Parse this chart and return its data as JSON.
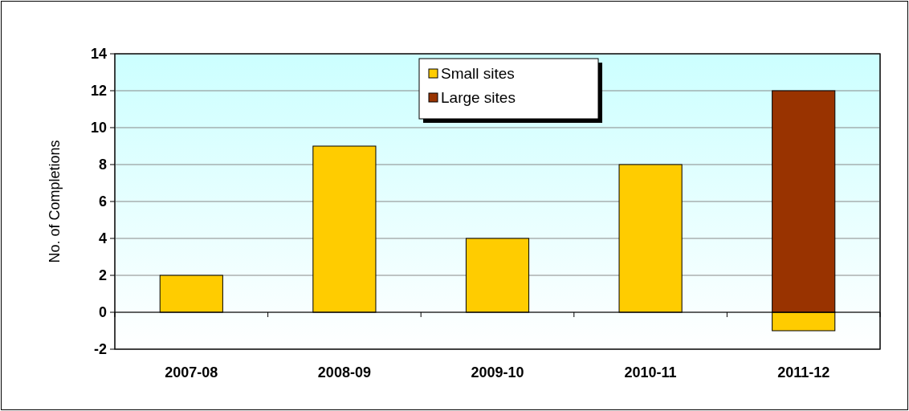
{
  "chart_data": {
    "type": "bar",
    "ylabel": "No. of Completions",
    "categories": [
      "2007-08",
      "2008-09",
      "2009-10",
      "2010-11",
      "2011-12"
    ],
    "series": [
      {
        "name": "Small sites",
        "color": "#ffcc00",
        "values": [
          2,
          9,
          4,
          8,
          -1
        ]
      },
      {
        "name": "Large sites",
        "color": "#993300",
        "values": [
          null,
          null,
          null,
          null,
          12
        ]
      }
    ],
    "stacked": true,
    "ylim": [
      -2,
      14
    ],
    "yticks": [
      -2,
      0,
      2,
      4,
      6,
      8,
      10,
      12,
      14
    ],
    "grid": "y",
    "legend": "top"
  }
}
